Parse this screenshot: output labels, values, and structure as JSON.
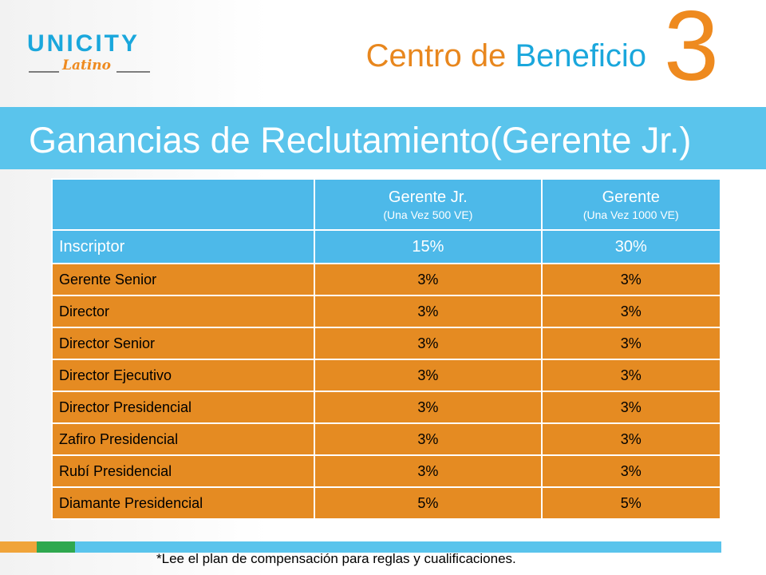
{
  "logo": {
    "main": "UNICITY",
    "sub": "Latino"
  },
  "header": {
    "title_word1": "Centro de",
    "title_word2": "Beneficio",
    "number": "3"
  },
  "banner": {
    "title": "Ganancias de Reclutamiento(Gerente Jr.)"
  },
  "colors": {
    "orange": "#e58b22",
    "blue": "#4db9e9",
    "green": "#2fa84f"
  },
  "table": {
    "headers": [
      {
        "main": "",
        "sub": ""
      },
      {
        "main": "Gerente Jr.",
        "sub": "(Una Vez 500 VE)"
      },
      {
        "main": "Gerente",
        "sub": "(Una Vez 1000 VE)"
      }
    ],
    "inscriptor": [
      "Inscriptor",
      "15%",
      "30%"
    ],
    "rows": [
      [
        "Gerente Senior",
        "3%",
        "3%"
      ],
      [
        "Director",
        "3%",
        "3%"
      ],
      [
        "Director Senior",
        "3%",
        "3%"
      ],
      [
        "Director Ejecutivo",
        "3%",
        "3%"
      ],
      [
        "Director Presidencial",
        "3%",
        "3%"
      ],
      [
        "Zafiro Presidencial",
        "3%",
        "3%"
      ],
      [
        "Rubí Presidencial",
        "3%",
        "3%"
      ],
      [
        "Diamante Presidencial",
        "5%",
        "5%"
      ]
    ]
  },
  "footnote": "*Lee el plan de compensación para reglas y cualificaciones."
}
